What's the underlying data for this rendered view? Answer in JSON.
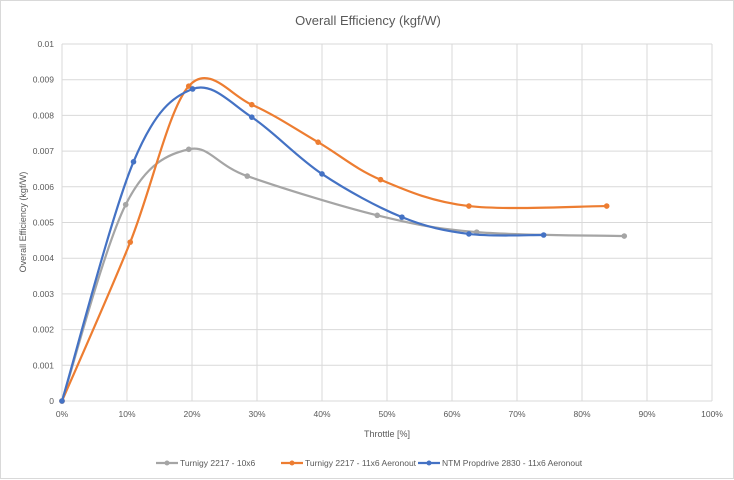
{
  "chart_data": {
    "type": "line",
    "title": "Overall Efficiency (kgf/W)",
    "xlabel": "Throttle  [%]",
    "ylabel": "Overall Efficiency (kgf/W)",
    "xlim": [
      0,
      100
    ],
    "ylim": [
      0,
      0.01
    ],
    "x_ticks": [
      0,
      10,
      20,
      30,
      40,
      50,
      60,
      70,
      80,
      90,
      100
    ],
    "x_tick_labels": [
      "0%",
      "10%",
      "20%",
      "30%",
      "40%",
      "50%",
      "60%",
      "70%",
      "80%",
      "90%",
      "100%"
    ],
    "y_ticks": [
      0,
      0.001,
      0.002,
      0.003,
      0.004,
      0.005,
      0.006,
      0.007,
      0.008,
      0.009,
      0.01
    ],
    "y_tick_labels": [
      "0",
      "0.001",
      "0.002",
      "0.003",
      "0.004",
      "0.005",
      "0.006",
      "0.007",
      "0.008",
      "0.009",
      "0.01"
    ],
    "grid": true,
    "smooth": true,
    "legend_position": "bottom",
    "series": [
      {
        "name": "Turnigy 2217 - 10x6",
        "color": "#a5a5a5",
        "x": [
          0,
          9.8,
          19.5,
          28.5,
          48.5,
          63.8,
          86.5
        ],
        "y": [
          0,
          0.0055,
          0.00705,
          0.0063,
          0.0052,
          0.00473,
          0.00462
        ]
      },
      {
        "name": "Turnigy 2217 - 11x6 Aeronout",
        "color": "#ed7d31",
        "x": [
          0,
          10.5,
          19.5,
          29.2,
          39.4,
          49.0,
          62.6,
          83.8
        ],
        "y": [
          0,
          0.00445,
          0.00882,
          0.0083,
          0.00725,
          0.0062,
          0.00546,
          0.00546
        ]
      },
      {
        "name": "NTM Propdrive 2830 - 11x6 Aeronout",
        "color": "#4472c4",
        "x": [
          0,
          11.0,
          20.1,
          29.2,
          40.0,
          52.3,
          62.6,
          74.1
        ],
        "y": [
          0,
          0.0067,
          0.00874,
          0.00795,
          0.00636,
          0.00515,
          0.00468,
          0.00465
        ]
      }
    ]
  }
}
